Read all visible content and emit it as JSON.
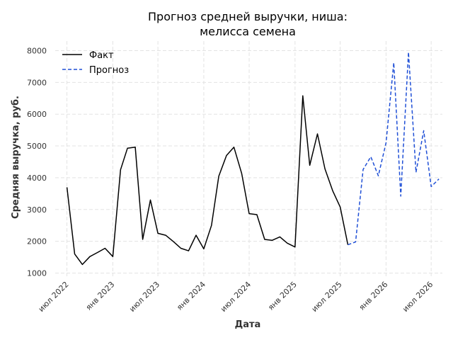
{
  "chart_data": {
    "type": "line",
    "title_lines": [
      "Прогноз средней выручки, ниша:",
      "мелисса семена"
    ],
    "xlabel": "Дата",
    "ylabel": "Средняя выручка, руб.",
    "ylim": [
      900,
      8300
    ],
    "y_ticks": [
      1000,
      2000,
      3000,
      4000,
      5000,
      6000,
      7000,
      8000
    ],
    "y_tick_labels": [
      "1000",
      "2000",
      "3000",
      "4000",
      "5000",
      "6000",
      "7000",
      "8000"
    ],
    "x_range": [
      "2022-05-15",
      "2026-08-15"
    ],
    "x_ticks": [
      "2022-07-01",
      "2023-01-01",
      "2023-07-01",
      "2024-01-01",
      "2024-07-01",
      "2025-01-01",
      "2025-07-01",
      "2026-01-01",
      "2026-07-01"
    ],
    "x_tick_labels": [
      "июл 2022",
      "янв 2023",
      "июл 2023",
      "янв 2024",
      "июл 2024",
      "янв 2025",
      "июл 2025",
      "янв 2026",
      "июл 2026"
    ],
    "grid": true,
    "legend_position": "top-left",
    "series": [
      {
        "name": "Факт",
        "style": "solid",
        "color": "#000000",
        "x": [
          "2022-07-01",
          "2022-08-01",
          "2022-09-01",
          "2022-10-01",
          "2022-11-01",
          "2022-12-01",
          "2023-01-01",
          "2023-02-01",
          "2023-03-01",
          "2023-04-01",
          "2023-05-01",
          "2023-06-01",
          "2023-07-01",
          "2023-08-01",
          "2023-09-01",
          "2023-10-01",
          "2023-11-01",
          "2023-12-01",
          "2024-01-01",
          "2024-02-01",
          "2024-03-01",
          "2024-04-01",
          "2024-05-01",
          "2024-06-01",
          "2024-07-01",
          "2024-08-01",
          "2024-09-01",
          "2024-10-01",
          "2024-11-01",
          "2024-12-01",
          "2025-01-01",
          "2025-02-01",
          "2025-03-01",
          "2025-04-01",
          "2025-05-01",
          "2025-06-01",
          "2025-07-01",
          "2025-08-01"
        ],
        "y": [
          3700,
          1600,
          1270,
          1520,
          1650,
          1780,
          1520,
          4250,
          4930,
          4960,
          2060,
          3300,
          2250,
          2190,
          1990,
          1780,
          1700,
          2190,
          1760,
          2500,
          4050,
          4700,
          4960,
          4130,
          2870,
          2840,
          2060,
          2030,
          2140,
          1940,
          1820,
          6580,
          4390,
          5380,
          4280,
          3590,
          3080,
          1890
        ]
      },
      {
        "name": "Прогноз",
        "style": "dashed",
        "color": "#1f4fd6",
        "x": [
          "2025-08-01",
          "2025-09-01",
          "2025-10-01",
          "2025-11-01",
          "2025-12-01",
          "2026-01-01",
          "2026-02-01",
          "2026-03-01",
          "2026-04-01",
          "2026-05-01",
          "2026-06-01",
          "2026-07-01",
          "2026-08-01"
        ],
        "y": [
          1890,
          1980,
          4260,
          4660,
          4060,
          5100,
          7620,
          3420,
          7950,
          4170,
          5480,
          3720,
          3960
        ]
      }
    ]
  }
}
